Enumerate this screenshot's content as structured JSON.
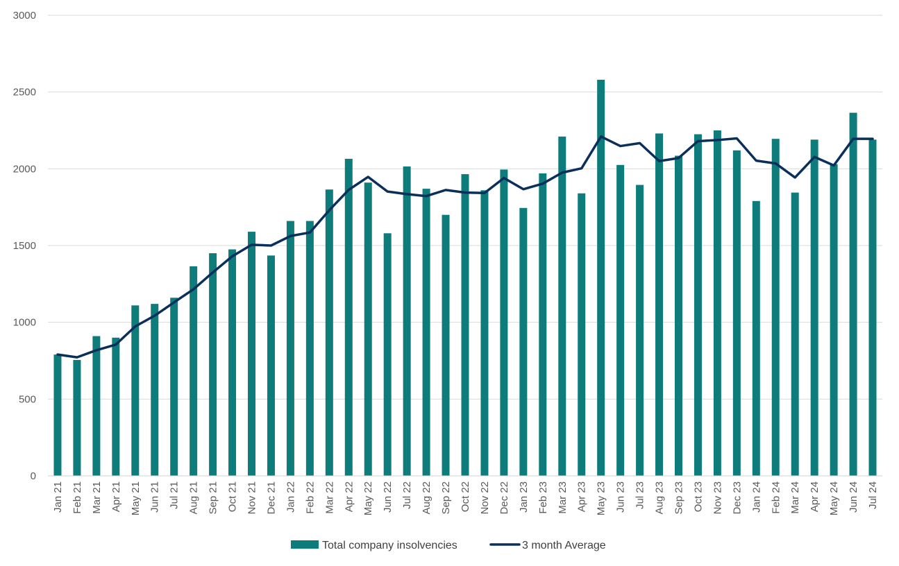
{
  "chart_data": {
    "type": "bar",
    "title": "",
    "xlabel": "",
    "ylabel": "",
    "ylim": [
      0,
      3000
    ],
    "yticks": [
      "0",
      "500",
      "1000",
      "1500",
      "2000",
      "2500",
      "3000"
    ],
    "grid": true,
    "legend_position": "bottom",
    "categories": [
      "Jan 21",
      "Feb 21",
      "Mar 21",
      "Apr 21",
      "May 21",
      "Jun 21",
      "Jul 21",
      "Aug 21",
      "Sep 21",
      "Oct 21",
      "Nov 21",
      "Dec 21",
      "Jan 22",
      "Feb 22",
      "Mar 22",
      "Apr 22",
      "May 22",
      "Jun 22",
      "Jul 22",
      "Aug 22",
      "Sep 22",
      "Oct 22",
      "Nov 22",
      "Dec 22",
      "Jan 23",
      "Feb 23",
      "Mar 23",
      "Apr 23",
      "May 23",
      "Jun 23",
      "Jul 23",
      "Aug 23",
      "Sep 23",
      "Oct 23",
      "Nov 23",
      "Dec 23",
      "Jan 24",
      "Feb 24",
      "Mar 24",
      "Apr 24",
      "May 24",
      "Jun 24",
      "Jul 24"
    ],
    "series": [
      {
        "name": "Total company insolvencies",
        "type": "bar",
        "color": "#0E7C7B",
        "values": [
          790,
          755,
          910,
          900,
          1110,
          1120,
          1160,
          1365,
          1450,
          1475,
          1590,
          1435,
          1660,
          1660,
          1865,
          2065,
          1910,
          1580,
          2015,
          1870,
          1700,
          1965,
          1860,
          1995,
          1745,
          1970,
          2210,
          1840,
          2580,
          2025,
          1895,
          2230,
          2085,
          2225,
          2250,
          2120,
          1790,
          2195,
          1845,
          2190,
          2030,
          2365,
          2190
        ]
      },
      {
        "name": "3 month Average",
        "type": "line",
        "color": "#0B2F5B",
        "values": [
          790,
          772,
          818,
          855,
          973,
          1043,
          1130,
          1215,
          1325,
          1430,
          1505,
          1500,
          1562,
          1585,
          1730,
          1863,
          1947,
          1852,
          1835,
          1822,
          1862,
          1845,
          1842,
          1940,
          1867,
          1903,
          1975,
          2003,
          2210,
          2148,
          2167,
          2050,
          2070,
          2180,
          2187,
          2198,
          2053,
          2035,
          1943,
          2077,
          2022,
          2195,
          2195
        ]
      }
    ]
  }
}
